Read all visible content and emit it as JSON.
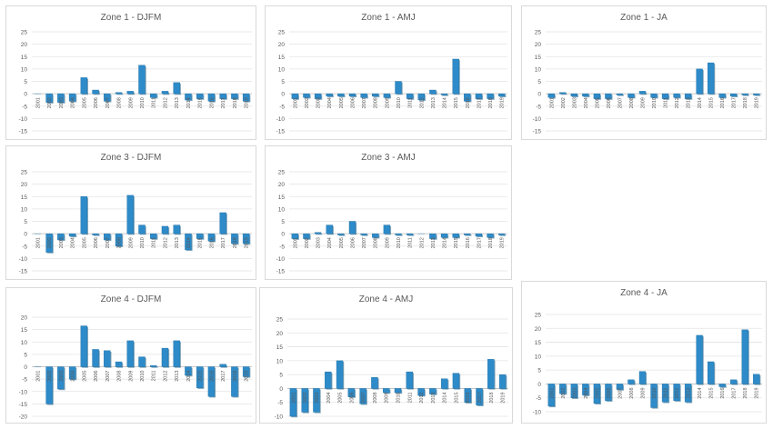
{
  "chart_data": [
    {
      "type": "bar",
      "title": "Zone 1 - DJFM",
      "categories": [
        "2001",
        "2002",
        "2003",
        "2004",
        "2005",
        "2006",
        "2007",
        "2008",
        "2009",
        "2010",
        "2011",
        "2012",
        "2013",
        "2014",
        "2015",
        "2016",
        "2017",
        "2018",
        "2019"
      ],
      "values": [
        0,
        -3.5,
        -3.5,
        -3,
        6.5,
        1.5,
        -3,
        0.5,
        1,
        11.5,
        -1.5,
        1,
        4.5,
        -2.5,
        -2,
        -3,
        -2,
        -2,
        -3
      ],
      "ylim": [
        -15,
        25
      ],
      "yticks": [
        -15,
        -10,
        -5,
        0,
        5,
        10,
        15,
        20,
        25
      ],
      "color": "#2e8bc9"
    },
    {
      "type": "bar",
      "title": "Zone 1 - AMJ",
      "categories": [
        "2001",
        "2002",
        "2003",
        "2004",
        "2005",
        "2006",
        "2007",
        "2008",
        "2009",
        "2010",
        "2011",
        "2012",
        "2013",
        "2014",
        "2015",
        "2016",
        "2017",
        "2018",
        "2019"
      ],
      "values": [
        -2,
        -1.5,
        -2,
        -1,
        -1,
        -1,
        -1.5,
        -1,
        -1.5,
        5,
        -2,
        -2.5,
        1.5,
        -0.5,
        14,
        -3,
        -2,
        -2,
        -1
      ],
      "ylim": [
        -15,
        25
      ],
      "yticks": [
        -15,
        -10,
        -5,
        0,
        5,
        10,
        15,
        20,
        25
      ],
      "color": "#2e8bc9"
    },
    {
      "type": "bar",
      "title": "Zone 1 - JA",
      "categories": [
        "2001",
        "2002",
        "2003",
        "2004",
        "2005",
        "2006",
        "2007",
        "2008",
        "2009",
        "2010",
        "2011",
        "2012",
        "2013",
        "2014",
        "2015",
        "2016",
        "2017",
        "2018",
        "2019"
      ],
      "values": [
        -1.5,
        0.5,
        -1,
        -1,
        -2,
        -2,
        -0.5,
        -1.5,
        1,
        -1.5,
        -2,
        -1.5,
        -2,
        10,
        12.5,
        -1.5,
        -1,
        -0.5,
        -0.5
      ],
      "ylim": [
        -15,
        25
      ],
      "yticks": [
        -15,
        -10,
        -5,
        0,
        5,
        10,
        15,
        20,
        25
      ],
      "color": "#2e8bc9"
    },
    {
      "type": "bar",
      "title": "Zone 3 - DJFM",
      "categories": [
        "2001",
        "2002",
        "2003",
        "2004",
        "2005",
        "2006",
        "2007",
        "2008",
        "2009",
        "2010",
        "2011",
        "2012",
        "2013",
        "2014",
        "2015",
        "2016",
        "2017",
        "2018",
        "2019"
      ],
      "values": [
        0,
        -7.5,
        -2.5,
        -1,
        15,
        -0.5,
        -2.5,
        -5,
        15.5,
        3.5,
        -2,
        3,
        3.5,
        -6.5,
        -2,
        -3,
        8.5,
        -4,
        -4
      ],
      "ylim": [
        -15,
        25
      ],
      "yticks": [
        -15,
        -10,
        -5,
        0,
        5,
        10,
        15,
        20,
        25
      ],
      "color": "#2e8bc9"
    },
    {
      "type": "bar",
      "title": "Zone 3 - AMJ",
      "categories": [
        "2001",
        "2002",
        "2003",
        "2004",
        "2005",
        "2006",
        "2007",
        "2008",
        "2009",
        "2010",
        "2011",
        "2012",
        "2013",
        "2014",
        "2015",
        "2016",
        "2017",
        "2018",
        "2019"
      ],
      "values": [
        -2,
        -2,
        0.5,
        3.5,
        -0.5,
        5,
        -0.5,
        -1.5,
        3.5,
        -0.5,
        -0.5,
        0,
        -2,
        -1.5,
        -1.5,
        -0.5,
        -1,
        -1.5,
        -0.5
      ],
      "ylim": [
        -15,
        25
      ],
      "yticks": [
        -15,
        -10,
        -5,
        0,
        5,
        10,
        15,
        20,
        25
      ],
      "color": "#2e8bc9"
    },
    {
      "type": "bar",
      "title": "Zone 4 - DJFM",
      "categories": [
        "2001",
        "2002",
        "2003",
        "2004",
        "2005",
        "2006",
        "2007",
        "2008",
        "2009",
        "2010",
        "2011",
        "2012",
        "2013",
        "2014",
        "2015",
        "2016",
        "2017",
        "2018",
        "2019"
      ],
      "values": [
        0,
        -15,
        -9,
        -5,
        16.5,
        7,
        6.5,
        2,
        10.5,
        4,
        0.5,
        7.5,
        10.5,
        -3.5,
        -8.5,
        -12,
        1,
        -12,
        -4
      ],
      "ylim": [
        -20,
        20
      ],
      "yticks": [
        -20,
        -15,
        -10,
        -5,
        0,
        5,
        10,
        15,
        20
      ],
      "color": "#2e8bc9"
    },
    {
      "type": "bar",
      "title": "Zone 4 - AMJ",
      "categories": [
        "2001",
        "2002",
        "2003",
        "2004",
        "2005",
        "2006",
        "2007",
        "2008",
        "2009",
        "2010",
        "2011",
        "2012",
        "2013",
        "2014",
        "2015",
        "2016",
        "2017",
        "2018",
        "2019"
      ],
      "values": [
        -10,
        -8.5,
        -8.5,
        6,
        10,
        -3,
        -5.5,
        4,
        -1.5,
        -1.5,
        6,
        -2.5,
        -2,
        3.5,
        5.5,
        -5,
        -6,
        10.5,
        5
      ],
      "ylim": [
        -10,
        25
      ],
      "yticks": [
        -10,
        -5,
        0,
        5,
        10,
        15,
        20,
        25
      ],
      "color": "#2e8bc9"
    },
    {
      "type": "bar",
      "title": "Zone 4 - JA",
      "categories": [
        "2001",
        "2002",
        "2003",
        "2004",
        "2005",
        "2006",
        "2007",
        "2008",
        "2009",
        "2010",
        "2011",
        "2012",
        "2013",
        "2014",
        "2015",
        "2016",
        "2017",
        "2018",
        "2019"
      ],
      "values": [
        -8,
        -3.5,
        -5,
        -4,
        -7,
        -6,
        -2,
        1.5,
        4.5,
        -8.5,
        -6.5,
        -6,
        -6.5,
        17.5,
        8,
        -1,
        1.5,
        19.5,
        3.5
      ],
      "ylim": [
        -10,
        25
      ],
      "yticks": [
        -10,
        -5,
        0,
        5,
        10,
        15,
        20,
        25
      ],
      "color": "#2e8bc9"
    }
  ]
}
